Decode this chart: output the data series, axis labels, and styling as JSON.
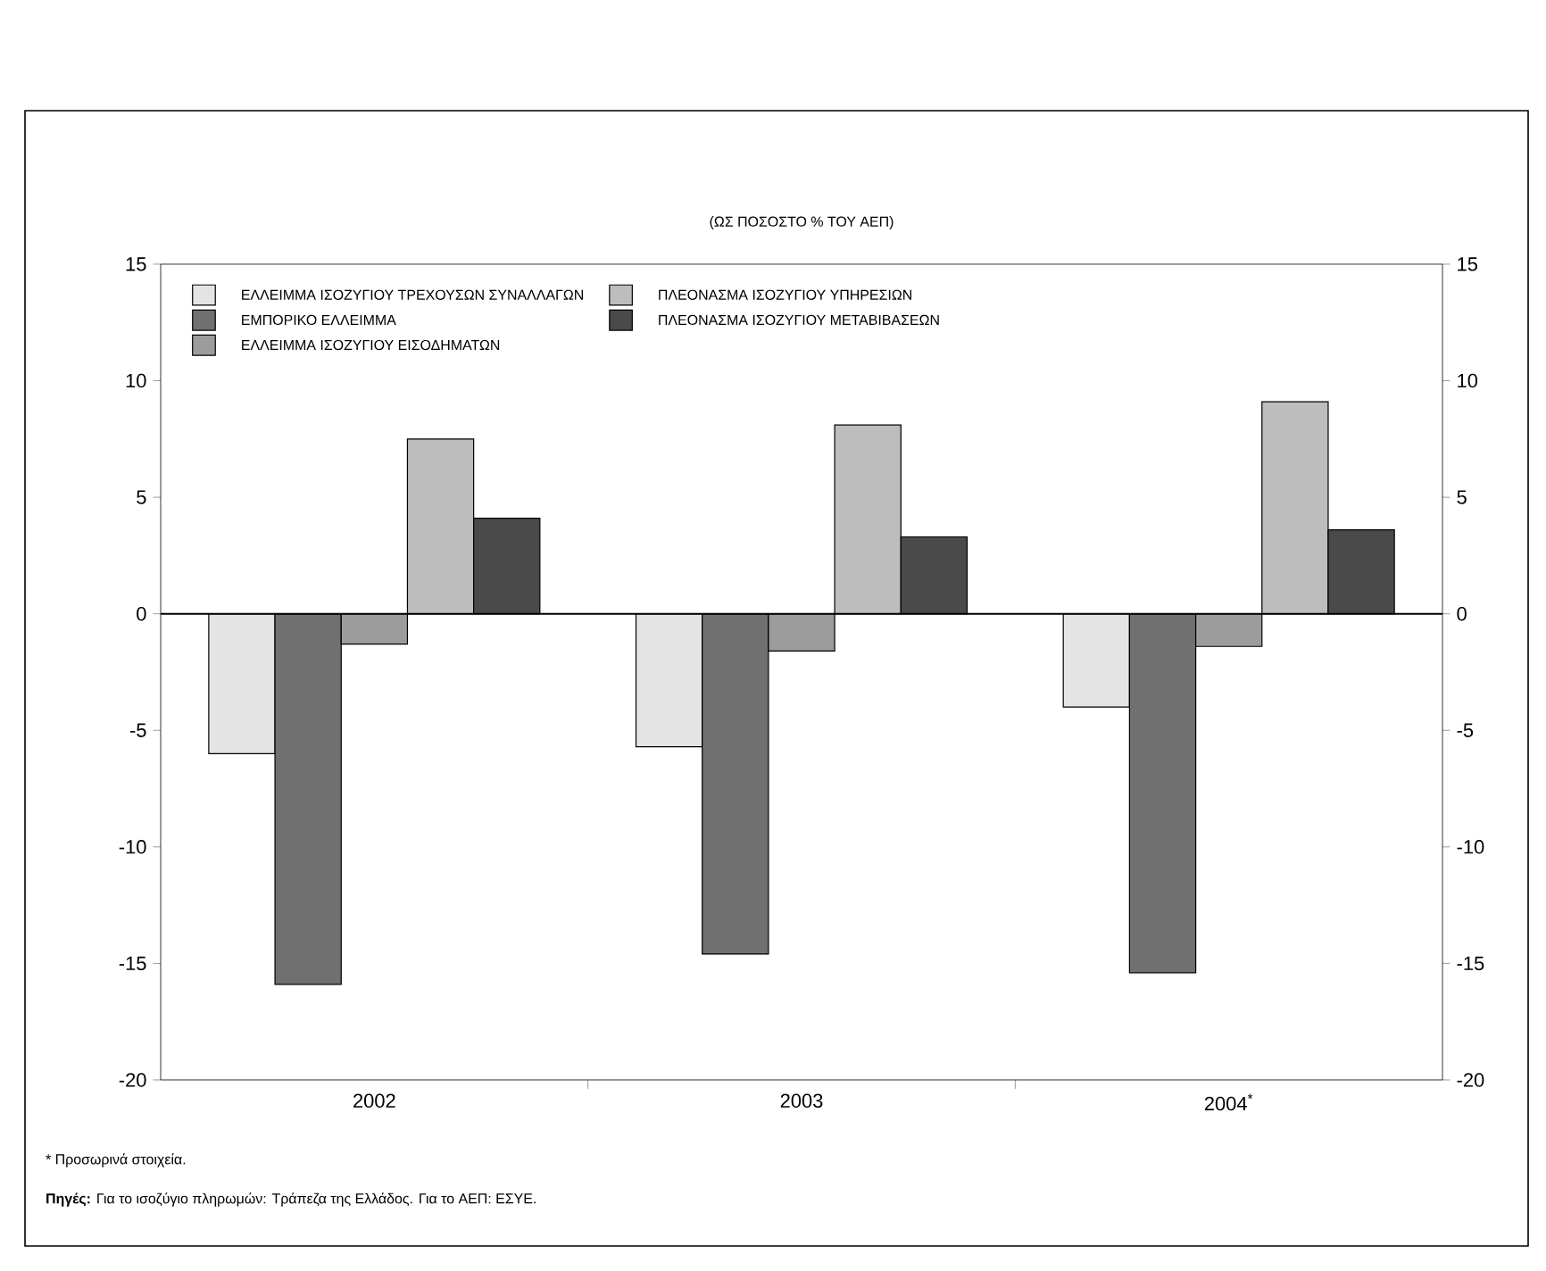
{
  "chart_data": {
    "type": "bar",
    "title": "(ΩΣ ΠΟΣΟΣΤΟ % ΤΟΥ ΑΕΠ)",
    "categories": [
      "2002",
      "2003",
      "2004$^{*}$"
    ],
    "series": [
      {
        "name": "ΕΛΛΕΙΜΜΑ ΙΣΟΖΥΓΙΟΥ ΤΡΕΧΟΥΣΩΝ ΣΥΝΑΛΛΑΓΩΝ",
        "color": "#e4e4e4",
        "values": [
          -6.0,
          -5.7,
          -4.0
        ]
      },
      {
        "name": "ΕΜΠΟΡΙΚΟ ΕΛΛΕΙΜΜΑ",
        "color": "#707070",
        "values": [
          -15.9,
          -14.6,
          -15.4
        ]
      },
      {
        "name": "ΕΛΛΕΙΜΜΑ ΙΣΟΖΥΓΙΟΥ ΕΙΣΟΔΗΜΑΤΩΝ",
        "color": "#9c9c9c",
        "values": [
          -1.3,
          -1.6,
          -1.4
        ]
      },
      {
        "name": "ΠΛΕΟΝΑΣΜΑ ΙΣΟΖΥΓΙΟΥ ΥΠΗΡΕΣΙΩΝ",
        "color": "#bdbdbd",
        "values": [
          7.5,
          8.1,
          9.1
        ]
      },
      {
        "name": "ΠΛΕΟΝΑΣΜΑ ΙΣΟΖΥΓΙΟΥ ΜΕΤΑΒΙΒΑΣΕΩΝ",
        "color": "#4a4a4a",
        "values": [
          4.1,
          3.3,
          3.6
        ]
      }
    ],
    "ylim": [
      -20,
      15
    ],
    "yticks": [
      -20,
      -15,
      -10,
      -5,
      0,
      5,
      10,
      15
    ],
    "y2lim": [
      -20,
      15
    ],
    "y2ticks": [
      -20,
      -15,
      -10,
      -5,
      0,
      5,
      10,
      15
    ],
    "ref_lines": [
      {
        "axis": "y",
        "value": 0,
        "color": "#000000"
      }
    ],
    "legend": "top left",
    "grid": false,
    "annotations": [
      "* Προσωρινά στοιχεία.",
      "**Πηγές:** Για το ισοζύγιο πληρωμών: Τράπεζα της Ελλάδος. Για το ΑΕΠ: ΕΣΥΕ."
    ]
  }
}
